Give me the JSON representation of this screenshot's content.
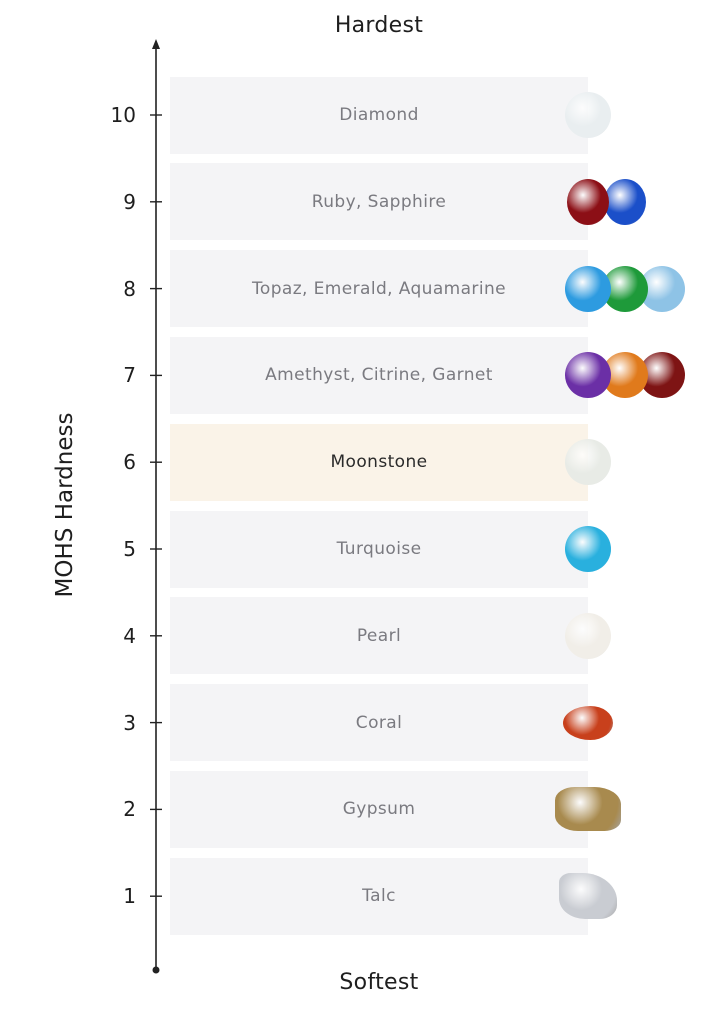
{
  "top_label": "Hardest",
  "bottom_label": "Softest",
  "axis_label": "MOHS Hardness",
  "highlight_color": "#faf3e8",
  "levels": [
    {
      "value": 10,
      "label": "Diamond",
      "gems": [
        {
          "name": "diamond-icon",
          "color": "#e9eef0"
        }
      ]
    },
    {
      "value": 9,
      "label": "Ruby, Sapphire",
      "gems": [
        {
          "name": "ruby-icon",
          "color": "#8c0f16"
        },
        {
          "name": "sapphire-icon",
          "color": "#1b4fc9"
        }
      ]
    },
    {
      "value": 8,
      "label": "Topaz, Emerald, Aquamarine",
      "gems": [
        {
          "name": "topaz-icon",
          "color": "#2d9be0"
        },
        {
          "name": "emerald-icon",
          "color": "#1e9a3a"
        },
        {
          "name": "aquamarine-icon",
          "color": "#8ec3e6"
        }
      ]
    },
    {
      "value": 7,
      "label": "Amethyst, Citrine, Garnet",
      "gems": [
        {
          "name": "amethyst-icon",
          "color": "#6b2fa6"
        },
        {
          "name": "citrine-icon",
          "color": "#e07a1c"
        },
        {
          "name": "garnet-icon",
          "color": "#7e1414"
        }
      ]
    },
    {
      "value": 6,
      "label": "Moonstone",
      "highlighted": true,
      "gems": [
        {
          "name": "moonstone-icon",
          "color": "#e8ebe6"
        }
      ]
    },
    {
      "value": 5,
      "label": "Turquoise",
      "gems": [
        {
          "name": "turquoise-icon",
          "color": "#29b0de"
        }
      ]
    },
    {
      "value": 4,
      "label": "Pearl",
      "gems": [
        {
          "name": "pearl-icon",
          "color": "#f1eee8"
        }
      ]
    },
    {
      "value": 3,
      "label": "Coral",
      "gems": [
        {
          "name": "coral-icon",
          "color": "#c8401c"
        }
      ]
    },
    {
      "value": 2,
      "label": "Gypsum",
      "gems": [
        {
          "name": "gypsum-icon",
          "color": "#a88a4e"
        }
      ]
    },
    {
      "value": 1,
      "label": "Talc",
      "gems": [
        {
          "name": "talc-icon",
          "color": "#c9ccd2"
        }
      ]
    }
  ]
}
